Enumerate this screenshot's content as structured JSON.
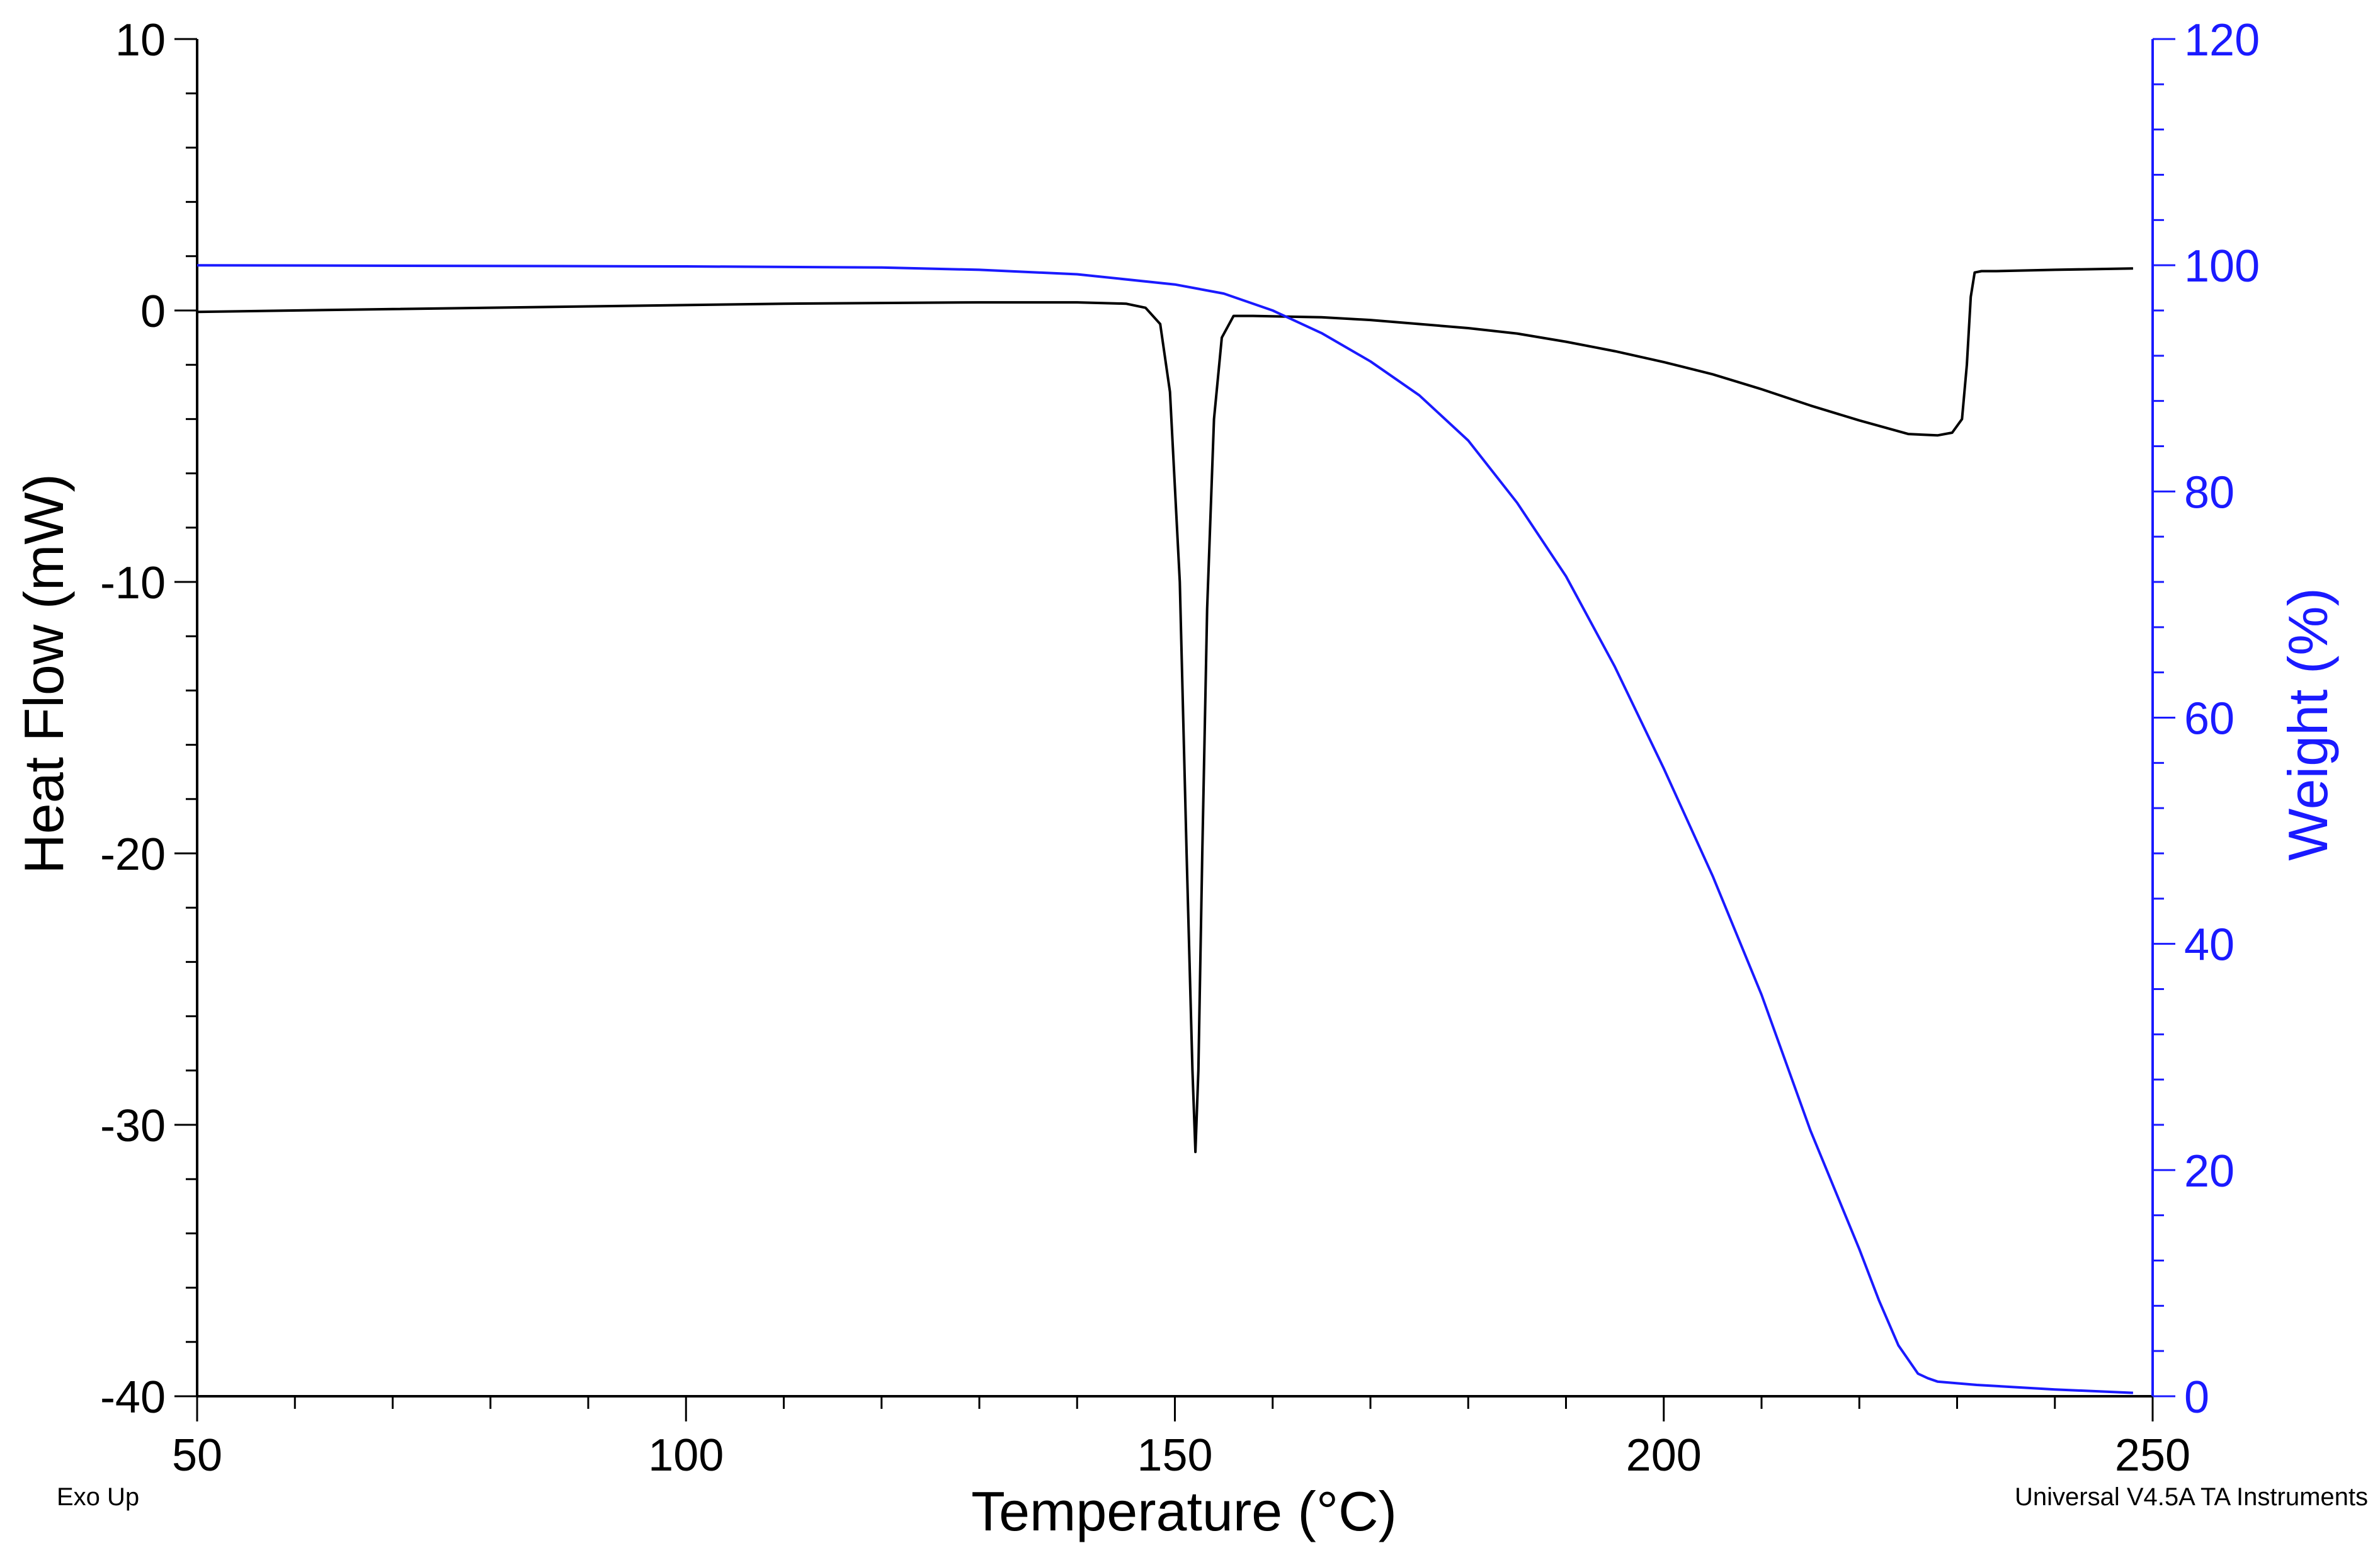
{
  "chart_data": {
    "type": "line",
    "xlabel": "Temperature (°C)",
    "ylabel_left": "Heat Flow (mW)",
    "ylabel_right": "Weight (%)",
    "xlim": [
      50,
      250
    ],
    "ylim_left": [
      -40,
      10
    ],
    "ylim_right": [
      0,
      120
    ],
    "x_ticks": [
      50,
      100,
      150,
      200,
      250
    ],
    "y_left_ticks": [
      10,
      0,
      -10,
      -20,
      -30,
      -40
    ],
    "y_right_ticks": [
      120,
      100,
      80,
      60,
      40,
      20,
      0
    ],
    "grid": false,
    "colors": {
      "heat_flow": "#000000",
      "weight": "#1a1aff",
      "right_axis": "#1a1aff"
    },
    "series": [
      {
        "name": "Heat Flow",
        "axis": "left",
        "x": [
          50,
          70,
          90,
          110,
          130,
          140,
          145,
          147,
          148.5,
          149.5,
          150.5,
          151.2,
          151.8,
          152.1,
          152.4,
          152.8,
          153.3,
          154,
          154.8,
          156,
          158,
          165,
          170,
          175,
          180,
          185,
          190,
          195,
          200,
          205,
          210,
          215,
          220,
          225,
          228,
          229.5,
          230.5,
          231,
          231.4,
          231.8,
          232.5,
          234,
          240,
          248
        ],
        "y": [
          -0.05,
          0.05,
          0.15,
          0.25,
          0.3,
          0.3,
          0.25,
          0.1,
          -0.5,
          -3,
          -10,
          -20,
          -28,
          -31,
          -28,
          -20,
          -11,
          -4,
          -1,
          -0.2,
          -0.2,
          -0.25,
          -0.35,
          -0.5,
          -0.65,
          -0.85,
          -1.15,
          -1.5,
          -1.9,
          -2.35,
          -2.9,
          -3.5,
          -4.05,
          -4.55,
          -4.6,
          -4.5,
          -4,
          -2,
          0.5,
          1.4,
          1.45,
          1.45,
          1.5,
          1.55
        ]
      },
      {
        "name": "Weight",
        "axis": "right",
        "x": [
          50,
          100,
          120,
          130,
          140,
          150,
          155,
          160,
          165,
          170,
          175,
          180,
          185,
          190,
          195,
          200,
          205,
          210,
          215,
          220,
          222,
          224,
          226,
          227,
          228,
          232,
          240,
          248
        ],
        "y": [
          100,
          99.9,
          99.8,
          99.6,
          99.2,
          98.3,
          97.5,
          96,
          94,
          91.5,
          88.5,
          84.5,
          79,
          72.5,
          64.5,
          55.5,
          46,
          35.5,
          23.5,
          13,
          8.5,
          4.5,
          2,
          1.6,
          1.3,
          1,
          0.6,
          0.3
        ]
      }
    ],
    "footer_left": "Exo Up",
    "footer_right": "Universal V4.5A TA Instruments"
  }
}
